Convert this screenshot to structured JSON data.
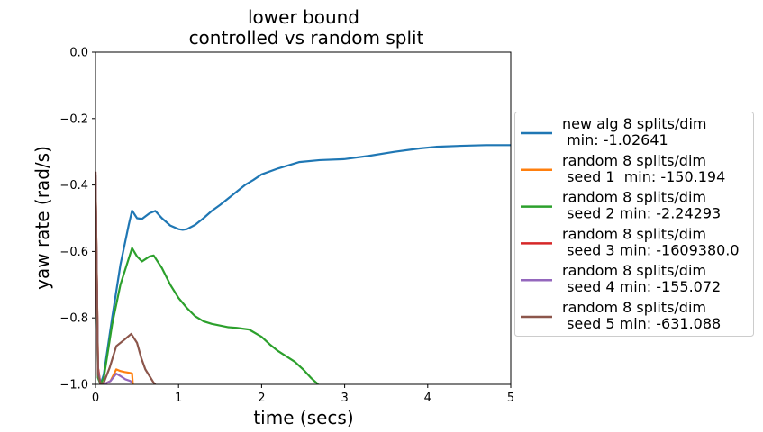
{
  "chart_data": {
    "type": "line",
    "title": [
      "lower bound",
      "controlled vs random split"
    ],
    "xlabel": "time (secs)",
    "ylabel": "yaw rate (rad/s)",
    "xlim": [
      0,
      5
    ],
    "ylim": [
      -1.0,
      0.0
    ],
    "xticks": [
      0,
      1,
      2,
      3,
      4,
      5
    ],
    "xtick_labels": [
      "0",
      "1",
      "2",
      "3",
      "4",
      "5"
    ],
    "yticks": [
      0.0,
      -0.2,
      -0.4,
      -0.6,
      -0.8,
      -1.0
    ],
    "ytick_labels": [
      "0.0",
      "−0.2",
      "−0.4",
      "−0.6",
      "−0.8",
      "−1.0"
    ],
    "grid": false,
    "legend_position": "right-outside",
    "series": [
      {
        "name": "new alg 8 splits/dim\n min: -1.02641",
        "color": "#1f77b4",
        "x": [
          0,
          0.03,
          0.06,
          0.1,
          0.2,
          0.3,
          0.4,
          0.44,
          0.5,
          0.56,
          0.65,
          0.72,
          0.8,
          0.9,
          1.0,
          1.05,
          1.1,
          1.2,
          1.3,
          1.4,
          1.5,
          1.6,
          1.7,
          1.8,
          1.9,
          2.0,
          2.2,
          2.45,
          2.7,
          3.0,
          3.3,
          3.6,
          3.9,
          4.1,
          4.4,
          4.7,
          5.0
        ],
        "y": [
          -0.37,
          -0.98,
          -1.0,
          -0.97,
          -0.8,
          -0.64,
          -0.52,
          -0.477,
          -0.5,
          -0.502,
          -0.485,
          -0.478,
          -0.5,
          -0.522,
          -0.533,
          -0.535,
          -0.533,
          -0.52,
          -0.5,
          -0.478,
          -0.46,
          -0.44,
          -0.42,
          -0.4,
          -0.385,
          -0.368,
          -0.35,
          -0.331,
          -0.325,
          -0.322,
          -0.312,
          -0.3,
          -0.29,
          -0.285,
          -0.282,
          -0.28,
          -0.28
        ]
      },
      {
        "name": "random 8 splits/dim\n seed 1  min: -150.194",
        "color": "#ff7f0e",
        "x": [
          0,
          0.03,
          0.06,
          0.1,
          0.18,
          0.25,
          0.3,
          0.35,
          0.4,
          0.44,
          0.45
        ],
        "y": [
          -0.36,
          -0.95,
          -1.0,
          -1.0,
          -0.99,
          -0.955,
          -0.96,
          -0.963,
          -0.965,
          -0.967,
          -1.0
        ]
      },
      {
        "name": "random 8 splits/dim\n seed 2 min: -2.24293",
        "color": "#2ca02c",
        "x": [
          0,
          0.03,
          0.06,
          0.1,
          0.2,
          0.3,
          0.44,
          0.5,
          0.56,
          0.65,
          0.7,
          0.8,
          0.9,
          1.0,
          1.1,
          1.2,
          1.3,
          1.4,
          1.5,
          1.6,
          1.7,
          1.85,
          2.0,
          2.1,
          2.2,
          2.4,
          2.5,
          2.6,
          2.68
        ],
        "y": [
          -0.37,
          -0.98,
          -1.0,
          -0.98,
          -0.82,
          -0.7,
          -0.59,
          -0.615,
          -0.63,
          -0.615,
          -0.612,
          -0.65,
          -0.7,
          -0.74,
          -0.77,
          -0.795,
          -0.81,
          -0.818,
          -0.823,
          -0.828,
          -0.83,
          -0.835,
          -0.857,
          -0.88,
          -0.9,
          -0.932,
          -0.955,
          -0.982,
          -1.0
        ]
      },
      {
        "name": "random 8 splits/dim\n seed 3 min: -1609380.0",
        "color": "#d62728",
        "x": [
          0,
          0.03,
          0.06
        ],
        "y": [
          -0.37,
          -0.95,
          -1.0
        ]
      },
      {
        "name": "random 8 splits/dim\n seed 4 min: -155.072",
        "color": "#9467bd",
        "x": [
          0,
          0.03,
          0.06,
          0.1,
          0.18,
          0.25,
          0.3,
          0.36,
          0.42,
          0.44
        ],
        "y": [
          -0.36,
          -0.96,
          -1.0,
          -1.0,
          -0.99,
          -0.968,
          -0.975,
          -0.985,
          -0.99,
          -0.995
        ]
      },
      {
        "name": "random 8 splits/dim\n seed 5 min: -631.088",
        "color": "#8c564b",
        "x": [
          0,
          0.03,
          0.06,
          0.1,
          0.17,
          0.25,
          0.35,
          0.43,
          0.5,
          0.55,
          0.6,
          0.65,
          0.7,
          0.72
        ],
        "y": [
          -0.36,
          -0.97,
          -1.0,
          -0.995,
          -0.95,
          -0.885,
          -0.865,
          -0.848,
          -0.875,
          -0.92,
          -0.955,
          -0.975,
          -0.995,
          -1.0
        ]
      }
    ]
  }
}
